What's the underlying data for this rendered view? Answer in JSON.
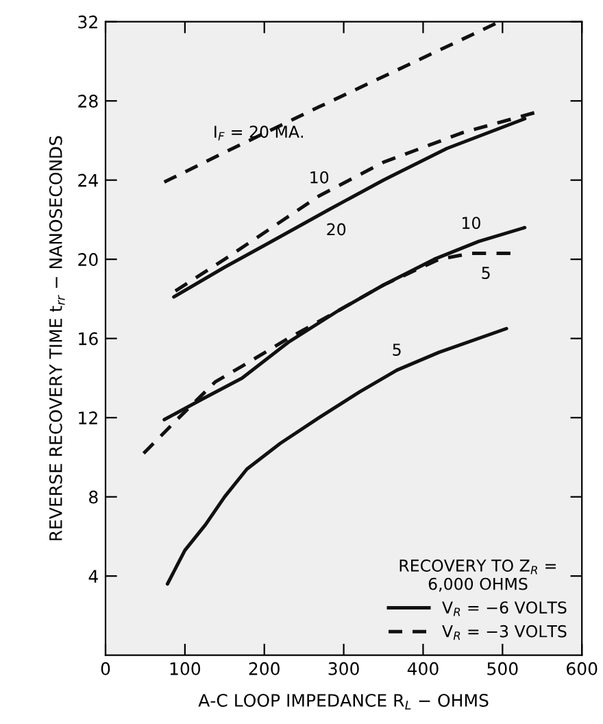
{
  "chart_data": {
    "type": "line",
    "xlabel": "A-C LOOP IMPEDANCE R$_{L}$ − OHMS",
    "ylabel": "REVERSE RECOVERY TIME t$_{rr}$ − NANOSECONDS",
    "legend_title": "RECOVERY TO Z$_{R}$ =\n6,000 OHMS",
    "series": [
      {
        "name": "V$_{R}$ = −6 VOLTS",
        "color": "#111111",
        "line_style": "solid",
        "x": [
          86,
          150,
          200,
          281,
          350,
          430,
          528
        ],
        "values": [
          18.1,
          19.6,
          20.7,
          22.5,
          24.0,
          25.6,
          27.1
        ]
      },
      {
        "color": "#111111",
        "line_style": "solid",
        "x": [
          74,
          120,
          172,
          230,
          293,
          350,
          414,
          470,
          528
        ],
        "values": [
          11.9,
          12.9,
          14.0,
          15.8,
          17.4,
          18.7,
          20.0,
          20.9,
          21.6
        ]
      },
      {
        "color": "#111111",
        "line_style": "solid",
        "x": [
          78,
          100,
          126,
          150,
          178,
          220,
          269,
          320,
          367,
          420,
          505
        ],
        "values": [
          3.6,
          5.3,
          6.6,
          8.0,
          9.4,
          10.7,
          12.0,
          13.3,
          14.4,
          15.3,
          16.5
        ]
      },
      {
        "name": "V$_{R}$ = −3 VOLTS",
        "color": "#111111",
        "line_style": "dashed",
        "x": [
          74,
          150,
          269,
          380,
          491
        ],
        "values": [
          23.9,
          25.4,
          27.7,
          29.8,
          31.9
        ]
      },
      {
        "color": "#111111",
        "line_style": "dashed",
        "x": [
          88,
          150,
          269,
          350,
          450,
          540
        ],
        "values": [
          18.4,
          20.0,
          23.2,
          24.9,
          26.4,
          27.4
        ]
      },
      {
        "color": "#111111",
        "line_style": "dashed",
        "x": [
          48,
          90,
          138,
          172,
          230,
          293,
          350,
          420,
          460,
          510
        ],
        "values": [
          10.2,
          11.9,
          13.8,
          14.6,
          16.0,
          17.4,
          18.7,
          20.0,
          20.3,
          20.3
        ]
      }
    ],
    "annotations": [
      {
        "text": "I$_{F}$ = 20 MA.",
        "x": 150,
        "y": 25.4
      },
      {
        "text": "10",
        "x": 269,
        "y": 23.2
      },
      {
        "text": "20",
        "x": 281,
        "y": 22.5
      },
      {
        "text": "10",
        "x": 470,
        "y": 20.9
      },
      {
        "text": "5",
        "x": 460,
        "y": 20.3
      },
      {
        "text": "5",
        "x": 367,
        "y": 14.4
      }
    ],
    "xlim": [
      0,
      600
    ],
    "ylim": [
      0,
      32
    ],
    "xticks": [
      0,
      100,
      200,
      300,
      400,
      500,
      600
    ],
    "yticks": [
      4,
      8,
      12,
      16,
      20,
      24,
      28,
      32
    ],
    "grid": false,
    "legend": "bottom right",
    "marker": "none"
  }
}
